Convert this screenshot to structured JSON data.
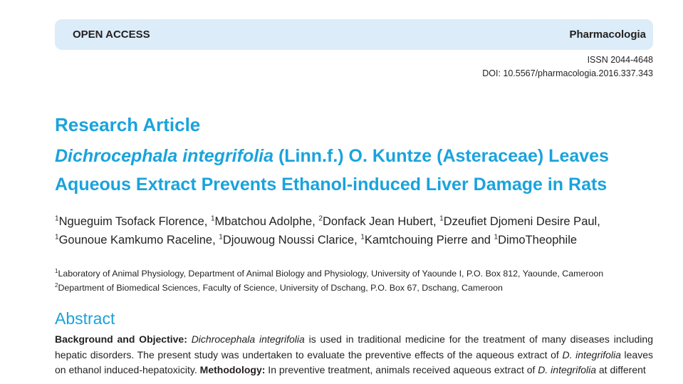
{
  "header": {
    "access_label": "OPEN ACCESS",
    "journal_name": "Pharmacologia"
  },
  "meta": {
    "issn": "ISSN 2044-4648",
    "doi": "DOI: 10.5567/pharmacologia.2016.337.343"
  },
  "article": {
    "type": "Research Article",
    "title_italic": "Dichrocephala integrifolia",
    "title_rest_line1": " (Linn.f.) O. Kuntze (Asteraceae) Leaves",
    "title_line2": "Aqueous Extract Prevents Ethanol-induced Liver Damage in Rats"
  },
  "authors": [
    {
      "sup": "1",
      "name": "Ngueguim Tsofack Florence",
      "sep": ", "
    },
    {
      "sup": "1",
      "name": "Mbatchou Adolphe",
      "sep": ", "
    },
    {
      "sup": "2",
      "name": "Donfack Jean Hubert",
      "sep": ", "
    },
    {
      "sup": "1",
      "name": "Dzeufiet Djomeni Desire Paul",
      "sep": ","
    },
    {
      "sup": "1",
      "name": "Gounoue Kamkumo Raceline",
      "sep": ", "
    },
    {
      "sup": "1",
      "name": "Djouwoug Noussi Clarice",
      "sep": ", "
    },
    {
      "sup": "1",
      "name": "Kamtchouing Pierre",
      "sep": " and "
    },
    {
      "sup": "1",
      "name": "DimoTheophile",
      "sep": ""
    }
  ],
  "affiliations": [
    {
      "sup": "1",
      "text": "Laboratory of Animal Physiology, Department of Animal Biology and Physiology, University of Yaounde I, P.O. Box 812, Yaounde, Cameroon"
    },
    {
      "sup": "2",
      "text": "Department of Biomedical Sciences, Faculty of Science, University of Dschang, P.O. Box 67, Dschang, Cameroon"
    }
  ],
  "abstract": {
    "heading": "Abstract",
    "bg_label": "Background and Objective:",
    "bg_species": "Dichrocephala integrifolia",
    "bg_text": " is used in traditional medicine for the treatment of many diseases including hepatic disorders. The present study was undertaken to evaluate the preventive effects of the aqueous extract of ",
    "bg_species_short": "D. integrifolia",
    "bg_text2": " leaves on ethanol induced-hepatoxicity. ",
    "method_label": "Methodology:",
    "method_text": " In preventive treatment, animals received aqueous extract of ",
    "method_species": "D. integrifolia",
    "method_text2": " at different"
  }
}
